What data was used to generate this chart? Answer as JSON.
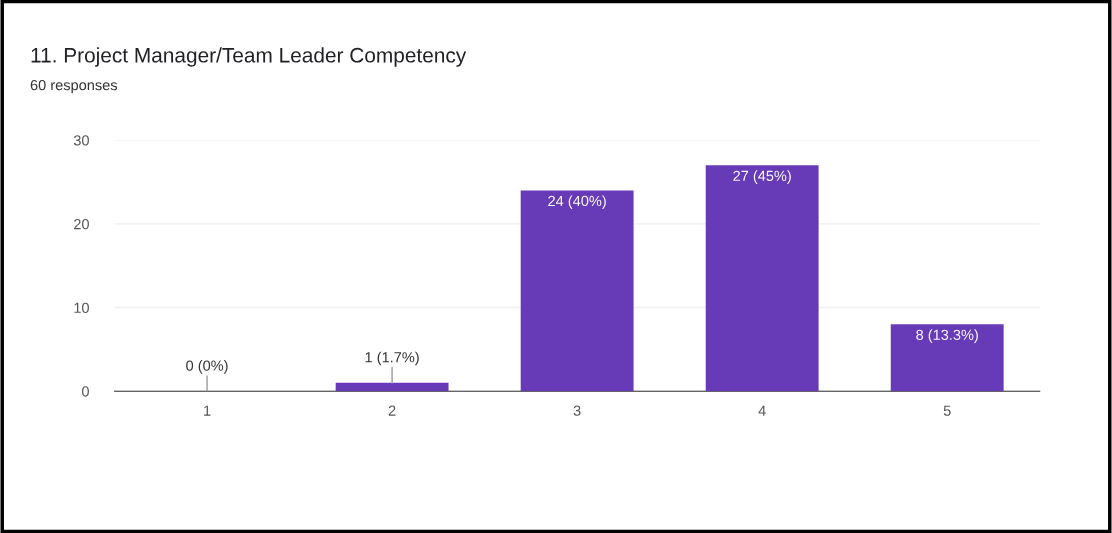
{
  "chart_data": {
    "type": "bar",
    "title": "11. Project Manager/Team Leader Competency",
    "subtitle": "60 responses",
    "categories": [
      "1",
      "2",
      "3",
      "4",
      "5"
    ],
    "values": [
      0,
      1,
      24,
      27,
      8
    ],
    "value_labels": [
      "0 (0%)",
      "1 (1.7%)",
      "24 (40%)",
      "27 (45%)",
      "8 (13.3%)"
    ],
    "color": "#673ab7",
    "ylim": [
      0,
      30
    ],
    "yticks": [
      0,
      10,
      20,
      30
    ],
    "grid": "y",
    "legend": false
  }
}
